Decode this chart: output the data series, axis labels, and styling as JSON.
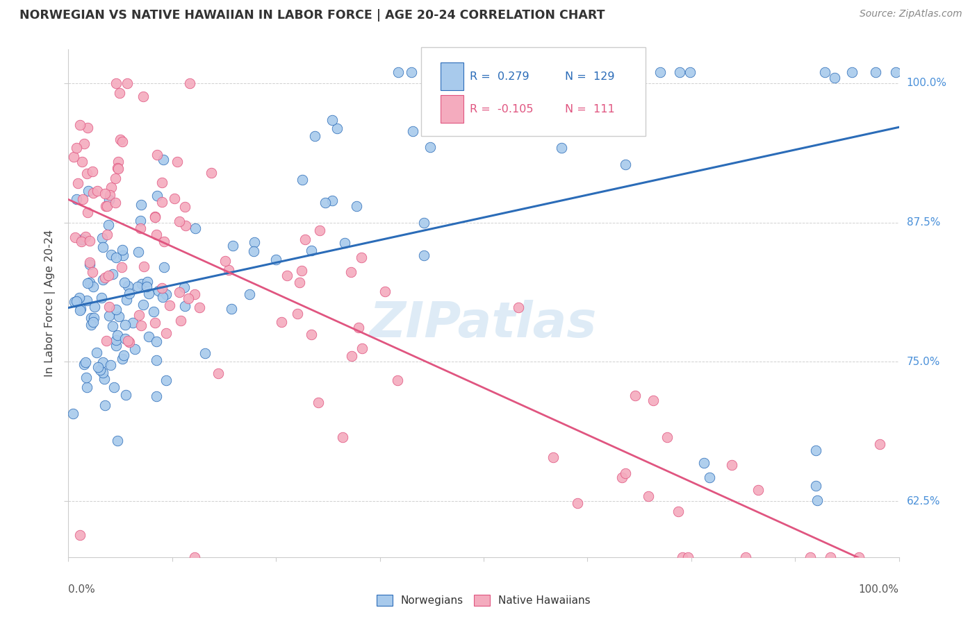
{
  "title": "NORWEGIAN VS NATIVE HAWAIIAN IN LABOR FORCE | AGE 20-24 CORRELATION CHART",
  "source": "Source: ZipAtlas.com",
  "ylabel": "In Labor Force | Age 20-24",
  "ytick_labels": [
    "62.5%",
    "75.0%",
    "87.5%",
    "100.0%"
  ],
  "ytick_values": [
    0.625,
    0.75,
    0.875,
    1.0
  ],
  "xlim": [
    0.0,
    1.0
  ],
  "ylim": [
    0.575,
    1.03
  ],
  "legend_r_norwegian": "0.279",
  "legend_n_norwegian": "129",
  "legend_r_hawaiian": "-0.105",
  "legend_n_hawaiian": "111",
  "color_norwegian": "#A8CAEC",
  "color_hawaiian": "#F4ABBE",
  "color_norwegian_line": "#2B6CB8",
  "color_hawaiian_line": "#E05580",
  "color_title": "#333333",
  "color_source": "#888888",
  "color_right_labels": "#4A90D9",
  "color_watermark": "#C8DFF0",
  "watermark": "ZIPatlas"
}
